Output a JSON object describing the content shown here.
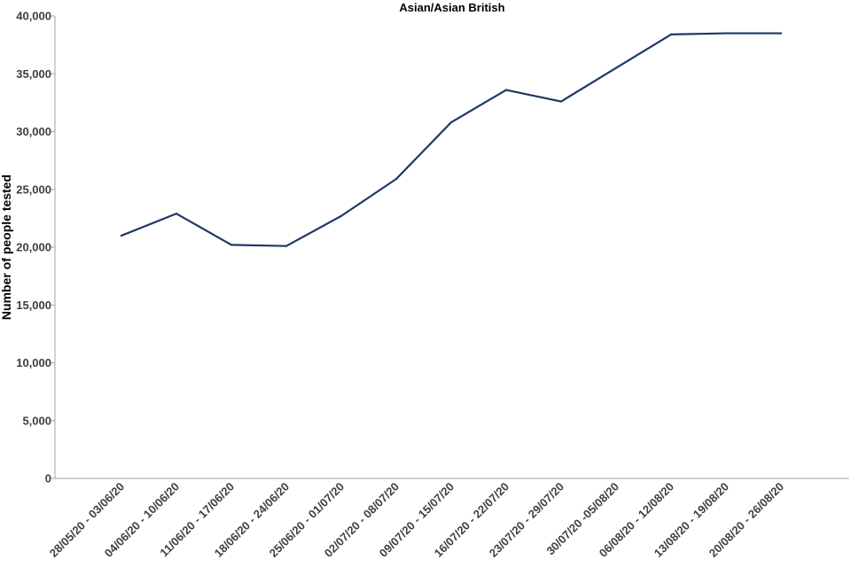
{
  "chart_data": {
    "type": "line",
    "title": "Asian/Asian British",
    "xlabel": "",
    "ylabel": "Number of people tested",
    "ylim": [
      0,
      40000
    ],
    "yticks": [
      0,
      5000,
      10000,
      15000,
      20000,
      25000,
      30000,
      35000,
      40000
    ],
    "ytick_labels": [
      "0",
      "5,000",
      "10,000",
      "15,000",
      "20,000",
      "25,000",
      "30,000",
      "35,000",
      "40,000"
    ],
    "grid": false,
    "legend": "none",
    "categories": [
      "28/05/20 - 03/06/20",
      "04/06/20 - 10/06/20",
      "11/06/20 - 17/06/20",
      "18/06/20 - 24/06/20",
      "25/06/20 - 01/07/20",
      "02/07/20 - 08/07/20",
      "09/07/20 - 15/07/20",
      "16/07/20 - 22/07/20",
      "23/07/20 - 29/07/20",
      "30/07/20 -05/08/20",
      "06/08/20 - 12/08/20",
      "13/08/20 - 19/08/20",
      "20/08/20 - 26/08/20"
    ],
    "series": [
      {
        "values": [
          21000,
          22900,
          20200,
          20100,
          22700,
          25900,
          30800,
          33600,
          32600,
          35500,
          38400,
          38500,
          38500
        ],
        "color": "#1f3864"
      }
    ],
    "colors": {
      "axis": "#a6a6a6",
      "tick_text": "#404040"
    }
  }
}
